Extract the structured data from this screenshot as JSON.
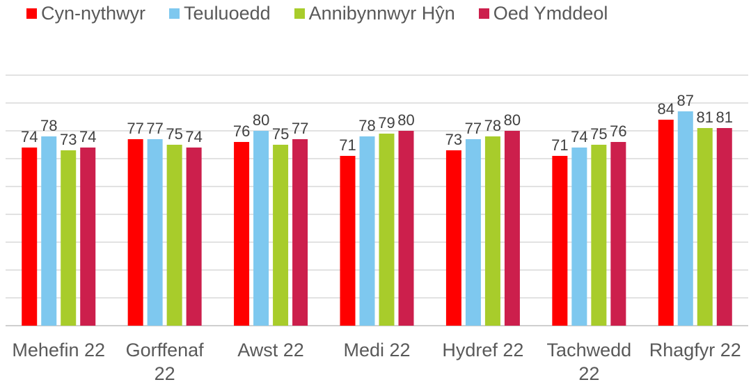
{
  "chart_data": {
    "type": "bar",
    "categories": [
      "Mehefin 22",
      "Gorffenaf 22",
      "Awst 22",
      "Medi 22",
      "Hydref 22",
      "Tachwedd 22",
      "Rhagfyr 22"
    ],
    "series": [
      {
        "name": "Cyn-nythwyr",
        "color": "#ff0000",
        "values": [
          74,
          77,
          76,
          71,
          73,
          71,
          84
        ]
      },
      {
        "name": "Teuluoedd",
        "color": "#7ec8ef",
        "values": [
          78,
          77,
          80,
          78,
          77,
          74,
          87
        ]
      },
      {
        "name": "Annibynnwyr Hŷn",
        "color": "#a8cc2b",
        "values": [
          73,
          75,
          75,
          79,
          78,
          75,
          81
        ]
      },
      {
        "name": "Oed Ymddeol",
        "color": "#cc1f4c",
        "values": [
          74,
          74,
          77,
          80,
          80,
          76,
          81
        ]
      }
    ],
    "ylim": [
      10,
      100
    ],
    "yticks": [
      10,
      20,
      30,
      40,
      50,
      60,
      70,
      80,
      90,
      100
    ],
    "grid": true,
    "legend": "top"
  }
}
